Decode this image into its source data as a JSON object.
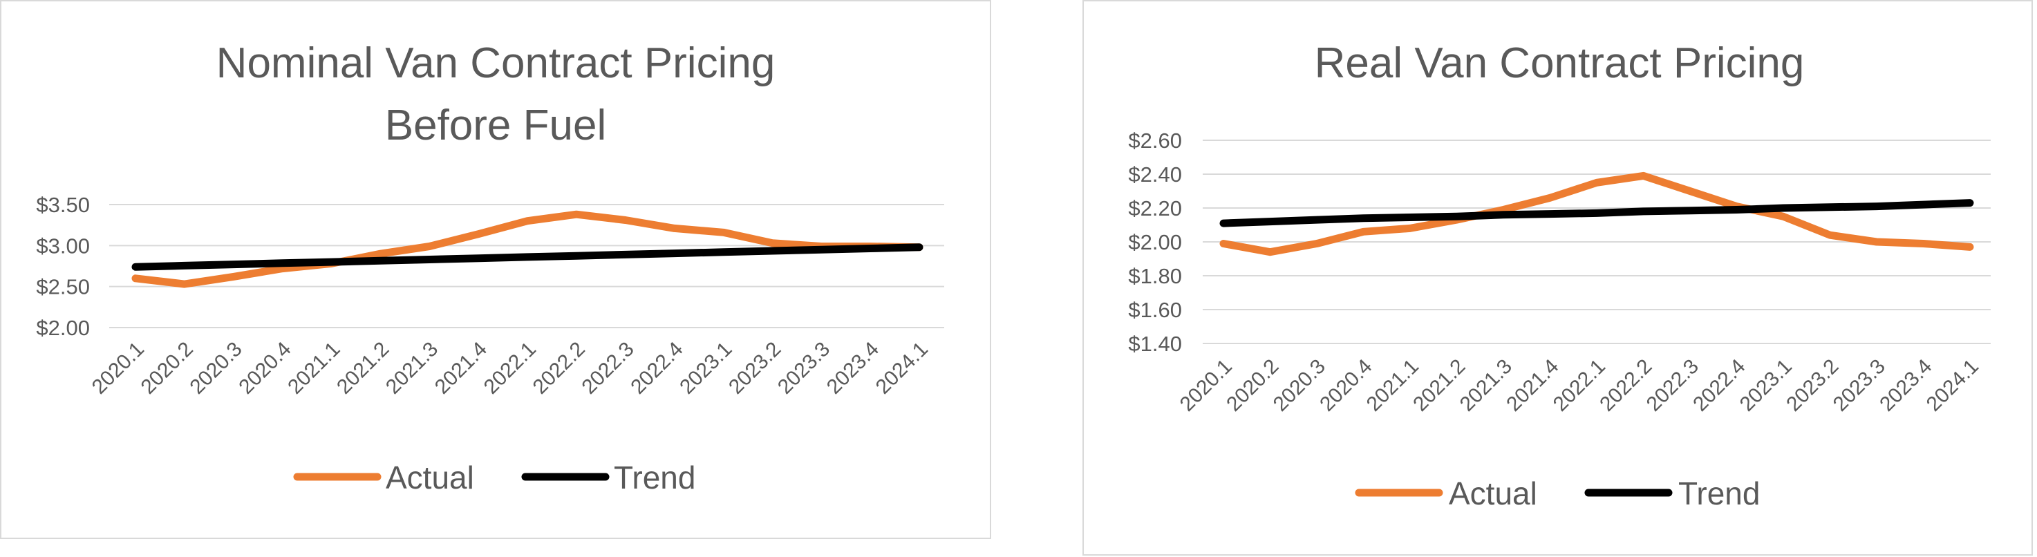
{
  "chart_data": [
    {
      "type": "line",
      "title": [
        "Nominal Van Contract Pricing",
        "Before Fuel"
      ],
      "x": [
        "2020.1",
        "2020.2",
        "2020.3",
        "2020.4",
        "2021.1",
        "2021.2",
        "2021.3",
        "2021.4",
        "2022.1",
        "2022.2",
        "2022.3",
        "2022.4",
        "2023.1",
        "2023.2",
        "2023.3",
        "2023.4",
        "2024.1"
      ],
      "y_ticks": [
        "$2.00",
        "$2.50",
        "$3.00",
        "$3.50"
      ],
      "ylim": [
        2.0,
        3.5
      ],
      "grid": true,
      "legend": "bottom",
      "series": [
        {
          "name": "Actual",
          "color": "#ED7D31",
          "values": [
            2.6,
            2.53,
            2.62,
            2.72,
            2.78,
            2.9,
            2.99,
            3.14,
            3.3,
            3.38,
            3.31,
            3.21,
            3.16,
            3.03,
            2.99,
            2.99,
            2.98
          ]
        },
        {
          "name": "Trend",
          "color": "#000000",
          "values": [
            2.74,
            2.755,
            2.77,
            2.785,
            2.8,
            2.815,
            2.83,
            2.845,
            2.86,
            2.875,
            2.89,
            2.905,
            2.92,
            2.935,
            2.95,
            2.965,
            2.98
          ]
        }
      ]
    },
    {
      "type": "line",
      "title": [
        "Real Van Contract Pricing"
      ],
      "x": [
        "2020.1",
        "2020.2",
        "2020.3",
        "2020.4",
        "2021.1",
        "2021.2",
        "2021.3",
        "2021.4",
        "2022.1",
        "2022.2",
        "2022.3",
        "2022.4",
        "2023.1",
        "2023.2",
        "2023.3",
        "2023.4",
        "2024.1"
      ],
      "y_ticks": [
        "$1.40",
        "$1.60",
        "$1.80",
        "$2.00",
        "$2.20",
        "$2.40",
        "$2.60"
      ],
      "ylim": [
        1.4,
        2.6
      ],
      "grid": true,
      "legend": "bottom",
      "series": [
        {
          "name": "Actual",
          "color": "#ED7D31",
          "values": [
            1.99,
            1.94,
            1.99,
            2.06,
            2.08,
            2.13,
            2.19,
            2.26,
            2.35,
            2.39,
            2.3,
            2.21,
            2.15,
            2.04,
            2.0,
            1.99,
            1.97
          ]
        },
        {
          "name": "Trend",
          "color": "#000000",
          "values": [
            2.11,
            2.12,
            2.13,
            2.14,
            2.145,
            2.15,
            2.16,
            2.165,
            2.17,
            2.18,
            2.185,
            2.19,
            2.2,
            2.205,
            2.21,
            2.22,
            2.23
          ]
        }
      ]
    }
  ]
}
